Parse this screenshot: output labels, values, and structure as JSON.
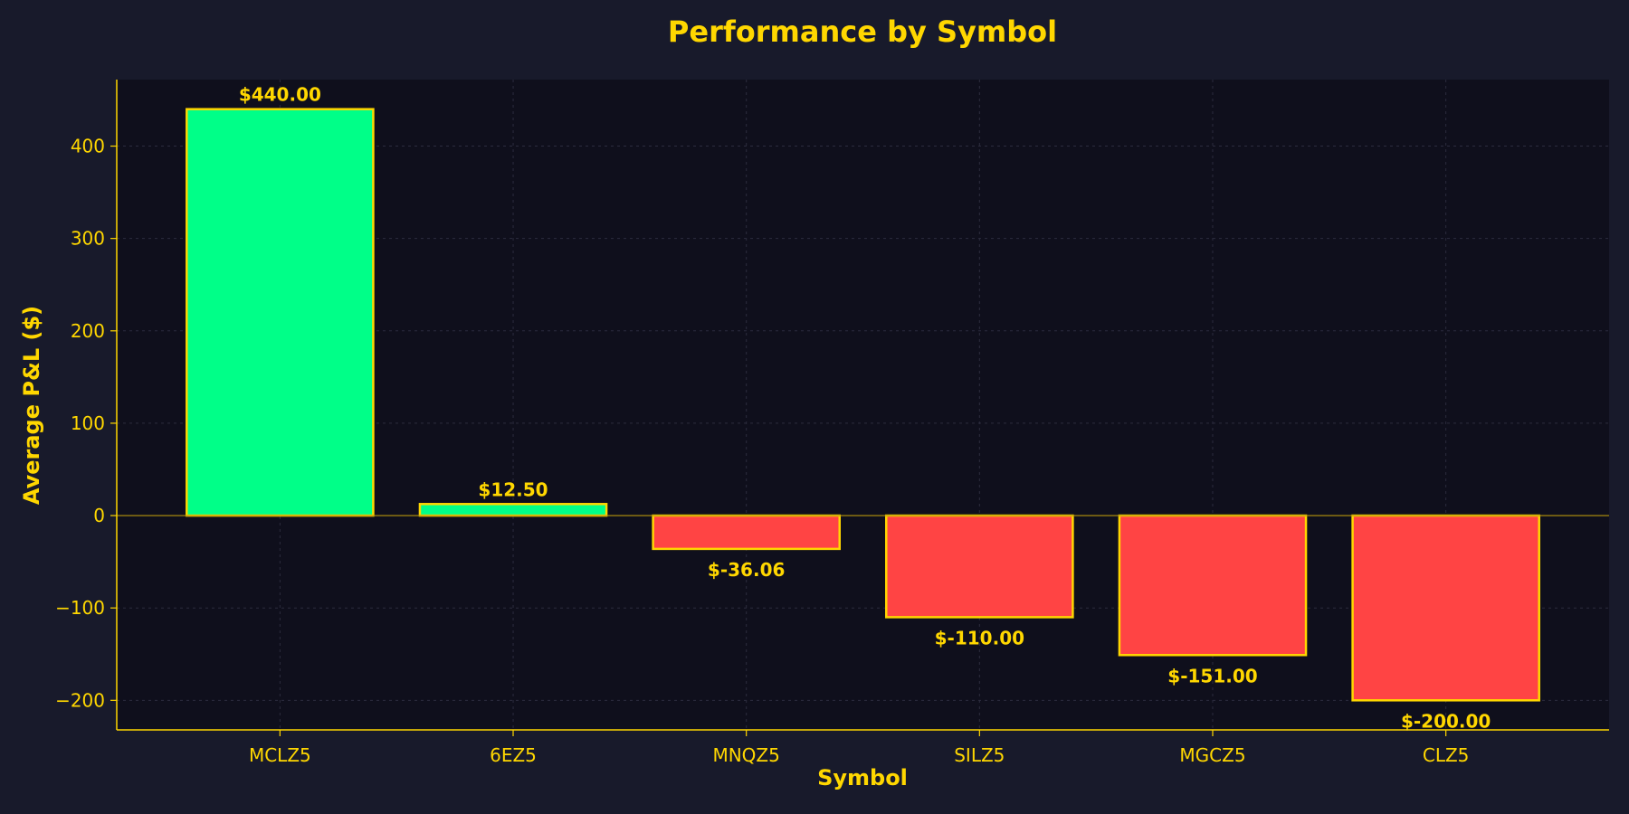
{
  "chart_data": {
    "type": "bar",
    "title": "Performance by Symbol",
    "xlabel": "Symbol",
    "ylabel": "Average P&L ($)",
    "categories": [
      "MCLZ5",
      "6EZ5",
      "MNQZ5",
      "SILZ5",
      "MGCZ5",
      "CLZ5"
    ],
    "values": [
      440.0,
      12.5,
      -36.06,
      -110.0,
      -151.0,
      -200.0
    ],
    "value_labels": [
      "$440.00",
      "$12.50",
      "$-36.06",
      "$-110.00",
      "$-151.00",
      "$-200.00"
    ],
    "ylim": [
      -232,
      472
    ],
    "yticks": [
      -200,
      -100,
      0,
      100,
      200,
      300,
      400
    ],
    "ytick_labels": [
      "−200",
      "−100",
      "0",
      "100",
      "200",
      "300",
      "400"
    ],
    "grid": true,
    "colors": {
      "positive": "#00ff88",
      "negative": "#ff4444",
      "bar_edge": "#ffd700",
      "text": "#ffd700",
      "plot_background": "#0f0f1c",
      "figure_background": "#181a2b",
      "grid": "#2c2c3e",
      "zero_line": "#b8960c"
    }
  }
}
